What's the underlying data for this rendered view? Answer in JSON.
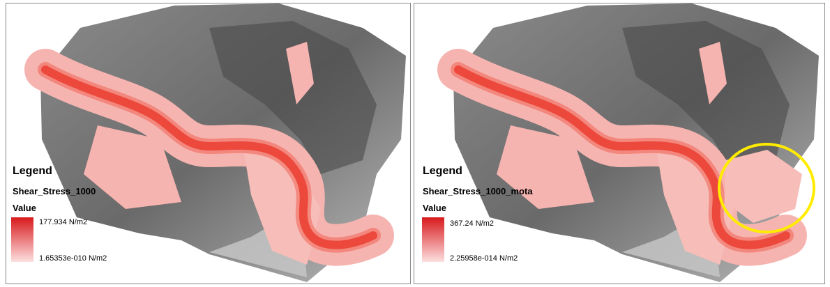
{
  "panels": [
    {
      "legend": {
        "title": "Legend",
        "layer": "Shear_Stress_1000",
        "field": "Value",
        "max_label": "177.934 N/m2",
        "min_label": "1.65353e-010 N/m2"
      }
    },
    {
      "legend": {
        "title": "Legend",
        "layer": "Shear_Stress_1000_mota",
        "field": "Value",
        "max_label": "367.24 N/m2",
        "min_label": "2.25958e-014 N/m2"
      }
    }
  ]
}
